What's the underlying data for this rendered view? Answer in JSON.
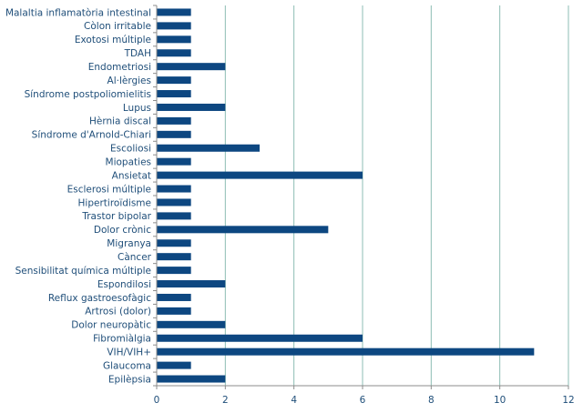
{
  "chart_data": {
    "type": "bar",
    "orientation": "horizontal",
    "categories": [
      "Malaltia inflamatòria intestinal",
      "Còlon irritable",
      "Exotosi múltiple",
      "TDAH",
      "Endometriosi",
      "Al·lèrgies",
      "Síndrome postpoliomielitis",
      "Lupus",
      "Hèrnia discal",
      "Síndrome d'Arnold-Chiari",
      "Escoliosi",
      "Miopaties",
      "Ansietat",
      "Esclerosi múltiple",
      "Hipertiroïdisme",
      "Trastor bipolar",
      "Dolor crònic",
      "Migranya",
      "Càncer",
      "Sensibilitat química múltiple",
      "Espondilosi",
      "Reflux gastroesofàgic",
      "Artrosi (dolor)",
      "Dolor neuropàtic",
      "Fibromiàlgia",
      "VIH/VIH+",
      "Glaucoma",
      "Epilèpsia"
    ],
    "values": [
      1,
      1,
      1,
      1,
      2,
      1,
      1,
      2,
      1,
      1,
      3,
      1,
      6,
      1,
      1,
      1,
      5,
      1,
      1,
      1,
      2,
      1,
      1,
      2,
      6,
      11,
      1,
      2
    ],
    "xlim": [
      0,
      12
    ],
    "x_ticks": [
      "0",
      "2",
      "4",
      "6",
      "8",
      "10",
      "12"
    ],
    "grid": "vertical",
    "bar_color": "#0d4781",
    "grid_color": "#8cbcb4",
    "axis_color": "#8c8c8c",
    "label_color": "#1f4e79"
  }
}
